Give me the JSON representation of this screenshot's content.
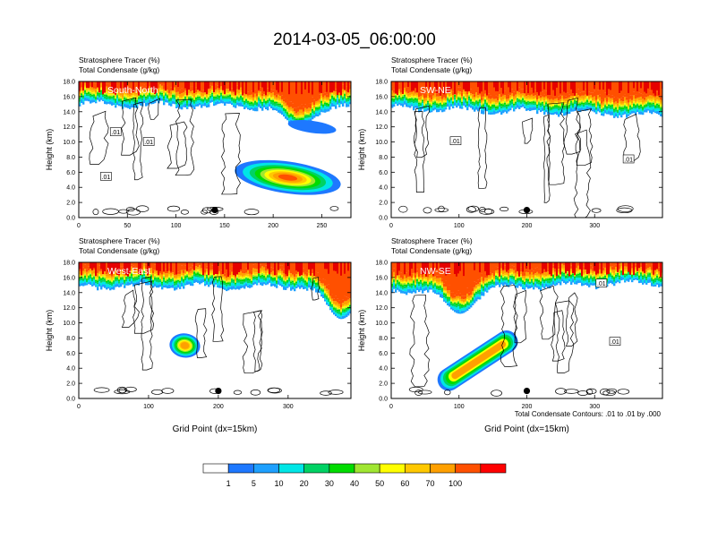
{
  "title": "2014-03-05_06:00:00",
  "panel_subtitle_1": "Stratosphere Tracer   (%)",
  "panel_subtitle_2": "Total Condensate   (g/kg)",
  "contour_note": "Total Condensate Contours: .01 to .01 by .000",
  "colors": {
    "levels": [
      "#ffffff",
      "#1e78ff",
      "#1ea0ff",
      "#00e6e6",
      "#00d264",
      "#00dc00",
      "#a0e632",
      "#ffff00",
      "#ffc800",
      "#ffa000",
      "#ff5000",
      "#ff0000"
    ],
    "contour": "#000000"
  },
  "chart_data": [
    {
      "type": "heatmap",
      "panel_label": "South-North",
      "ylabel": "Height (km)",
      "xlabel": "",
      "xlim": [
        0,
        280
      ],
      "ylim": [
        0,
        18
      ],
      "xticks": [
        0,
        50,
        100,
        150,
        200,
        250
      ],
      "yticks": [
        "0.0",
        "2.0",
        "4.0",
        "6.0",
        "8.0",
        "10.0",
        "12.0",
        "14.0",
        "16.0",
        "18.0"
      ],
      "contour_labels": [
        {
          "text": ".01",
          "x": 38,
          "y": 11.3
        },
        {
          "text": ".01",
          "x": 72,
          "y": 10.0
        },
        {
          "text": ".01",
          "x": 28,
          "y": 5.4
        }
      ],
      "tracer_layer": {
        "base_left_km": 15.0,
        "base_right_km": 14.5,
        "dip": [
          {
            "x": 225,
            "min_km": 12.0
          }
        ]
      },
      "features": [
        {
          "kind": "blob",
          "x": 215,
          "y": 5.3,
          "rx": 55,
          "ry": 2.1,
          "core": 100
        },
        {
          "kind": "blob",
          "x": 240,
          "y": 12.0,
          "rx": 25,
          "ry": 0.8,
          "core": 5
        }
      ],
      "marker": {
        "x": 140,
        "y": 1.0
      }
    },
    {
      "type": "heatmap",
      "panel_label": "SW-NE",
      "ylabel": "Height (km)",
      "xlabel": "",
      "xlim": [
        0,
        400
      ],
      "ylim": [
        0,
        18
      ],
      "xticks": [
        0,
        100,
        200,
        300
      ],
      "yticks": [
        "0.0",
        "2.0",
        "4.0",
        "6.0",
        "8.0",
        "10.0",
        "12.0",
        "14.0",
        "16.0",
        "18.0"
      ],
      "contour_labels": [
        {
          "text": ".01",
          "x": 95,
          "y": 10.1
        },
        {
          "text": ".01",
          "x": 350,
          "y": 7.7
        }
      ],
      "tracer_layer": {
        "base_left_km": 14.5,
        "base_right_km": 13.5,
        "dip": []
      },
      "features": [],
      "marker": {
        "x": 200,
        "y": 1.0
      }
    },
    {
      "type": "heatmap",
      "panel_label": "West-East",
      "ylabel": "Height (km)",
      "xlabel": "Grid Point (dx=15km)",
      "xlim": [
        0,
        390
      ],
      "ylim": [
        0,
        18
      ],
      "xticks": [
        0,
        100,
        200,
        300
      ],
      "yticks": [
        "0.0",
        "2.0",
        "4.0",
        "6.0",
        "8.0",
        "10.0",
        "12.0",
        "14.0",
        "16.0",
        "18.0"
      ],
      "contour_labels": [],
      "tracer_layer": {
        "base_left_km": 14.8,
        "base_right_km": 14.8,
        "dip": [
          {
            "x": 375,
            "min_km": 10.5
          }
        ]
      },
      "features": [
        {
          "kind": "blob",
          "x": 152,
          "y": 7.0,
          "rx": 22,
          "ry": 1.6,
          "core": 90
        }
      ],
      "marker": {
        "x": 200,
        "y": 1.0
      }
    },
    {
      "type": "heatmap",
      "panel_label": "NW-SE",
      "ylabel": "Height (km)",
      "xlabel": "Grid Point (dx=15km)",
      "xlim": [
        0,
        400
      ],
      "ylim": [
        0,
        18
      ],
      "xticks": [
        0,
        100,
        200,
        300
      ],
      "yticks": [
        "0.0",
        "2.0",
        "4.0",
        "6.0",
        "8.0",
        "10.0",
        "12.0",
        "14.0",
        "16.0",
        "18.0"
      ],
      "contour_labels": [
        {
          "text": ".01",
          "x": 310,
          "y": 15.2
        },
        {
          "text": ".01",
          "x": 330,
          "y": 7.5
        }
      ],
      "tracer_layer": {
        "base_left_km": 14.2,
        "base_right_km": 15.3,
        "dip": [
          {
            "x": 100,
            "min_km": 11.2
          }
        ]
      },
      "features": [
        {
          "kind": "band",
          "x0": 85,
          "y0": 2.5,
          "x1": 170,
          "y1": 7.5,
          "width_km": 1.5,
          "core": 90
        }
      ],
      "marker": {
        "x": 200,
        "y": 1.0
      }
    }
  ],
  "colorbar": {
    "labels": [
      "1",
      "5",
      "10",
      "20",
      "30",
      "40",
      "50",
      "60",
      "70",
      "100"
    ]
  }
}
